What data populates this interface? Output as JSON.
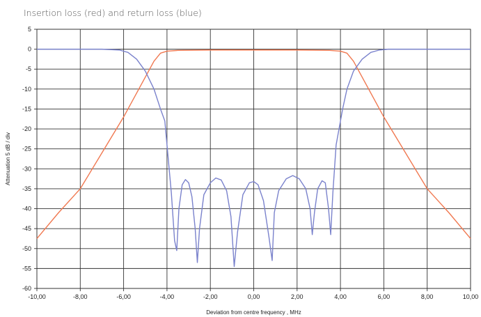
{
  "chart_data": {
    "type": "line",
    "title": "Insertion loss (red) and return loss (blue)",
    "xlabel": "Deviation from centre frequency ,  MHz",
    "ylabel": "Attenuation  5 dB / div",
    "xlim": [
      -10,
      10
    ],
    "ylim": [
      -60,
      5
    ],
    "x_ticks": [
      -10,
      -8,
      -6,
      -4,
      -2,
      0,
      2,
      4,
      6,
      8,
      10
    ],
    "x_tick_labels": [
      "-10,00",
      "-8,00",
      "-6,00",
      "-4,00",
      "-2,00",
      "0,00",
      "2,00",
      "4,00",
      "6,00",
      "8,00",
      "10,00"
    ],
    "y_ticks": [
      5,
      0,
      -5,
      -10,
      -15,
      -20,
      -25,
      -30,
      -35,
      -40,
      -45,
      -50,
      -55,
      -60
    ],
    "y_tick_labels": [
      "5",
      "0",
      "-5",
      "-10",
      "-15",
      "-20",
      "-25",
      "-30",
      "-35",
      "-40",
      "-45",
      "-50",
      "-55",
      "-60"
    ],
    "grid": true,
    "legend": "none",
    "series": [
      {
        "color": "#f07850",
        "x": [
          -10,
          -9,
          -8,
          -7,
          -6,
          -5.5,
          -5,
          -4.6,
          -4.3,
          -4.0,
          -3.5,
          -2,
          0,
          2,
          3.5,
          4.0,
          4.3,
          4.6,
          5,
          5.5,
          6,
          7,
          8,
          9,
          10
        ],
        "y": [
          -47.5,
          -41,
          -35,
          -26,
          -17,
          -12,
          -7,
          -3,
          -1,
          -0.5,
          -0.3,
          -0.2,
          -0.2,
          -0.2,
          -0.3,
          -0.5,
          -1,
          -3,
          -7,
          -12,
          -17,
          -26,
          -35,
          -41,
          -47.5
        ]
      },
      {
        "color": "#7a82cc",
        "x": [
          -10,
          -7,
          -6.2,
          -5.8,
          -5.4,
          -5.0,
          -4.6,
          -4.3,
          -4.1,
          -4.0,
          -3.8,
          -3.65,
          -3.55,
          -3.45,
          -3.3,
          -3.15,
          -3.0,
          -2.85,
          -2.7,
          -2.6,
          -2.5,
          -2.3,
          -2.0,
          -1.75,
          -1.5,
          -1.25,
          -1.05,
          -0.9,
          -0.75,
          -0.5,
          -0.2,
          0.0,
          0.2,
          0.45,
          0.7,
          0.85,
          0.9,
          0.95,
          1.15,
          1.5,
          1.8,
          2.1,
          2.4,
          2.6,
          2.7,
          2.8,
          2.95,
          3.15,
          3.3,
          3.45,
          3.55,
          3.65,
          3.8,
          4.0,
          4.1,
          4.3,
          4.6,
          5.0,
          5.4,
          5.8,
          6.2,
          7,
          10
        ],
        "y": [
          0,
          0,
          -0.2,
          -0.8,
          -2.5,
          -5.5,
          -10,
          -15,
          -18,
          -24,
          -36,
          -48,
          -50.5,
          -40,
          -34,
          -32.7,
          -33.5,
          -37,
          -45,
          -53.5,
          -45,
          -36.5,
          -33.5,
          -32.3,
          -32.8,
          -35.5,
          -42,
          -54.5,
          -46,
          -36.5,
          -33.5,
          -33.2,
          -34,
          -38,
          -47,
          -53,
          -47,
          -41,
          -35.5,
          -32.5,
          -31.7,
          -32.5,
          -35,
          -40,
          -46.5,
          -41,
          -35,
          -33,
          -33.5,
          -40,
          -46.5,
          -36,
          -24,
          -18,
          -15,
          -10,
          -5.5,
          -2.5,
          -0.8,
          -0.2,
          0,
          0,
          0
        ]
      }
    ]
  }
}
